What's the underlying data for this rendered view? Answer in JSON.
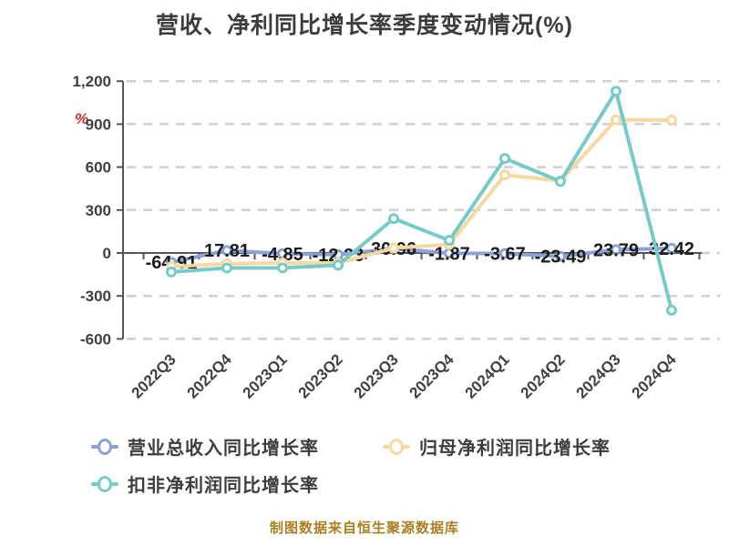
{
  "title": "营收、净利同比增长率季度变动情况(%)",
  "y_axis_unit": "%",
  "footer": "制图数据来自恒生聚源数据库",
  "colors": {
    "revenue_series": "#8CA2D6",
    "net_profit_series": "#F8D8A2",
    "non_gaap_series": "#76CBC9",
    "grid": "#cfcfcf",
    "axis": "#555555",
    "unit_mark": "#d3281e",
    "footer_text": "#a8801f"
  },
  "legend": {
    "items": [
      {
        "label": "营业总收入同比增长率",
        "color": "#8CA2D6"
      },
      {
        "label": "归母净利润同比增长率",
        "color": "#F8D8A2"
      },
      {
        "label": "扣非净利润同比增长率",
        "color": "#76CBC9"
      }
    ]
  },
  "chart_data": {
    "type": "line",
    "title": "营收、净利同比增长率季度变动情况(%)",
    "categories": [
      "2022Q3",
      "2022Q4",
      "2023Q1",
      "2023Q2",
      "2023Q3",
      "2023Q4",
      "2024Q1",
      "2024Q2",
      "2024Q3",
      "2024Q4"
    ],
    "series": [
      {
        "name": "营业总收入同比增长率",
        "color": "#8CA2D6",
        "values": [
          -64.91,
          17.81,
          -4.85,
          -12.23,
          30.96,
          -1.87,
          -3.67,
          -23.49,
          23.79,
          32.42
        ],
        "data_labels": [
          "-64.91",
          "17.81",
          "-4.85",
          "-12.23",
          "30.96",
          "-1.87",
          "-3.67",
          "-23.49",
          "23.79",
          "32.42"
        ]
      },
      {
        "name": "归母净利润同比增长率",
        "color": "#F8D8A2",
        "values": [
          -95,
          -75,
          -70,
          -70,
          34,
          60,
          545,
          505,
          930,
          928
        ]
      },
      {
        "name": "扣非净利润同比增长率",
        "color": "#76CBC9",
        "values": [
          -133,
          -105,
          -104,
          -85,
          240,
          88,
          660,
          500,
          1130,
          -400
        ]
      }
    ],
    "ylim": [
      -600,
      1200
    ],
    "yticks": [
      1200,
      900,
      600,
      300,
      0,
      -300,
      -600
    ],
    "ytick_labels": [
      "1,200",
      "900",
      "600",
      "300",
      "0",
      "-300",
      "-600"
    ],
    "xlabel": "",
    "ylabel": "%",
    "grid": "horizontal-dashed",
    "legend_position": "bottom-left",
    "x_label_rotation": -45
  }
}
